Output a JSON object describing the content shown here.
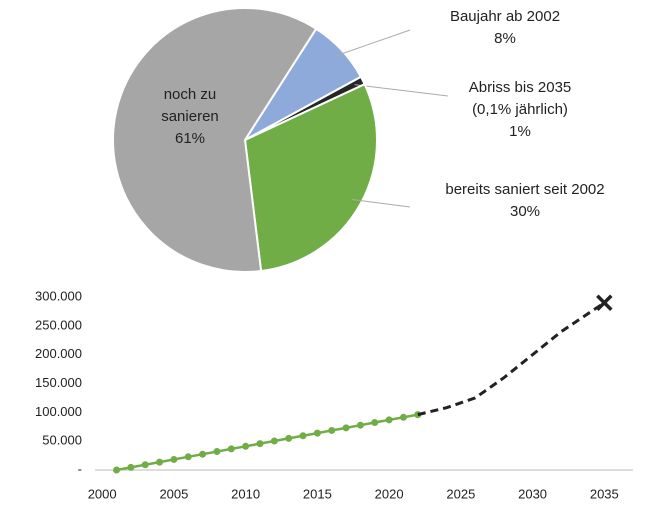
{
  "chart_data": [
    {
      "type": "pie",
      "categories": [
        [
          "Baujahr ab 2002"
        ],
        [
          "Abriss bis 2035",
          "(0,1% jährlich)"
        ],
        [
          "bereits saniert seit 2002"
        ],
        [
          "noch zu",
          "sanieren"
        ]
      ],
      "values": [
        8,
        1,
        30,
        61
      ],
      "value_labels": [
        "8%",
        "1%",
        "30%",
        "61%"
      ],
      "colors": [
        "#8eaadb",
        "#262626",
        "#70ad47",
        "#a6a6a6"
      ]
    },
    {
      "type": "line",
      "xlim": [
        1999.5,
        2037
      ],
      "xticks": [
        2000,
        2005,
        2010,
        2015,
        2020,
        2025,
        2030,
        2035
      ],
      "ylim": [
        0,
        300000
      ],
      "yticks": [
        {
          "value": 0,
          "label": "-"
        },
        {
          "value": 50000,
          "label": "50.000"
        },
        {
          "value": 100000,
          "label": "100.000"
        },
        {
          "value": 150000,
          "label": "150.000"
        },
        {
          "value": 200000,
          "label": "200.000"
        },
        {
          "value": 250000,
          "label": "250.000"
        },
        {
          "value": 300000,
          "label": "300.000"
        }
      ],
      "grid": false,
      "series": [
        {
          "color": "#70ad47",
          "marker": "circle",
          "dash": false,
          "x": [
            2001,
            2002,
            2003,
            2004,
            2005,
            2006,
            2007,
            2008,
            2009,
            2010,
            2011,
            2012,
            2013,
            2014,
            2015,
            2016,
            2017,
            2018,
            2019,
            2020,
            2021,
            2022
          ],
          "values": [
            0,
            4600,
            9100,
            13700,
            18300,
            22900,
            27400,
            32000,
            36600,
            41100,
            45700,
            50300,
            54900,
            59400,
            64000,
            68600,
            73100,
            77700,
            82300,
            86900,
            91400,
            96000
          ]
        },
        {
          "color": "#222222",
          "marker": "end-x",
          "dash": true,
          "x": [
            2022,
            2024,
            2026,
            2028,
            2030,
            2032,
            2035
          ],
          "values": [
            96000,
            108000,
            125000,
            160000,
            200000,
            240000,
            290000
          ]
        }
      ]
    }
  ]
}
